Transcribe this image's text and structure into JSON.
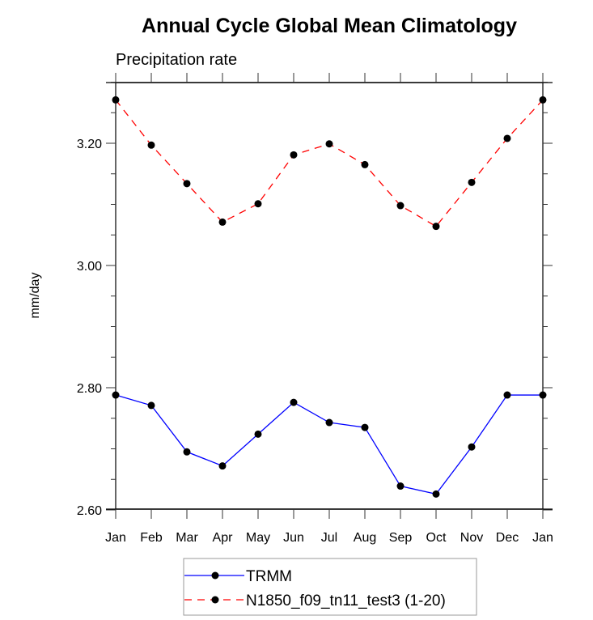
{
  "chart_data": {
    "type": "line",
    "title": "Annual Cycle Global Mean Climatology",
    "subtitle": "Precipitation rate",
    "xlabel": "",
    "ylabel": "mm/day",
    "categories": [
      "Jan",
      "Feb",
      "Mar",
      "Apr",
      "May",
      "Jun",
      "Jul",
      "Aug",
      "Sep",
      "Oct",
      "Nov",
      "Dec",
      "Jan"
    ],
    "ylim": [
      2.6,
      3.3
    ],
    "y_major_ticks": [
      2.6,
      2.8,
      3.0,
      3.2
    ],
    "y_tick_labels": [
      "2.60",
      "2.80",
      "3.00",
      "3.20"
    ],
    "y_minor_step": 0.05,
    "grid": false,
    "legend_position": "bottom-center",
    "series": [
      {
        "name": "TRMM",
        "color": "#0000ff",
        "line_style": "solid",
        "marker": "filled-circle",
        "marker_color": "#000000",
        "values": [
          2.788,
          2.771,
          2.695,
          2.672,
          2.724,
          2.776,
          2.743,
          2.735,
          2.639,
          2.626,
          2.703,
          2.788,
          2.788
        ]
      },
      {
        "name": "N1850_f09_tn11_test3 (1-20)",
        "color": "#ff0000",
        "line_style": "dashed",
        "marker": "filled-circle",
        "marker_color": "#000000",
        "values": [
          3.271,
          3.197,
          3.134,
          3.071,
          3.101,
          3.181,
          3.199,
          3.165,
          3.098,
          3.064,
          3.136,
          3.208,
          3.271
        ]
      }
    ]
  }
}
